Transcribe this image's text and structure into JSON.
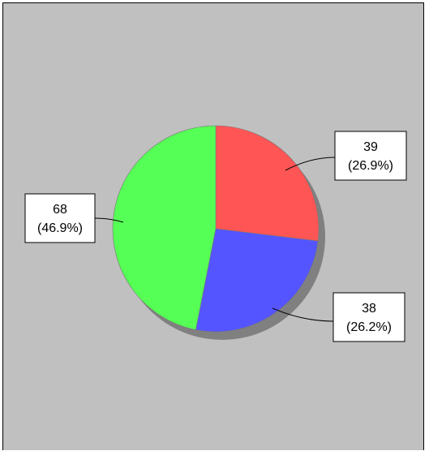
{
  "chart_data": {
    "type": "pie",
    "title": "",
    "slices": [
      {
        "value": 39,
        "percent_label": "(26.9%)",
        "color": "#ff5555"
      },
      {
        "value": 38,
        "percent_label": "(26.2%)",
        "color": "#5555ff"
      },
      {
        "value": 68,
        "percent_label": "(46.9%)",
        "color": "#55ff55"
      }
    ],
    "start_angle_deg": 0,
    "direction": "clockwise",
    "background_color": "#c0c0c0",
    "shadow_color": "#808080",
    "legend": "none",
    "data_labels": "outside with leader lines"
  }
}
